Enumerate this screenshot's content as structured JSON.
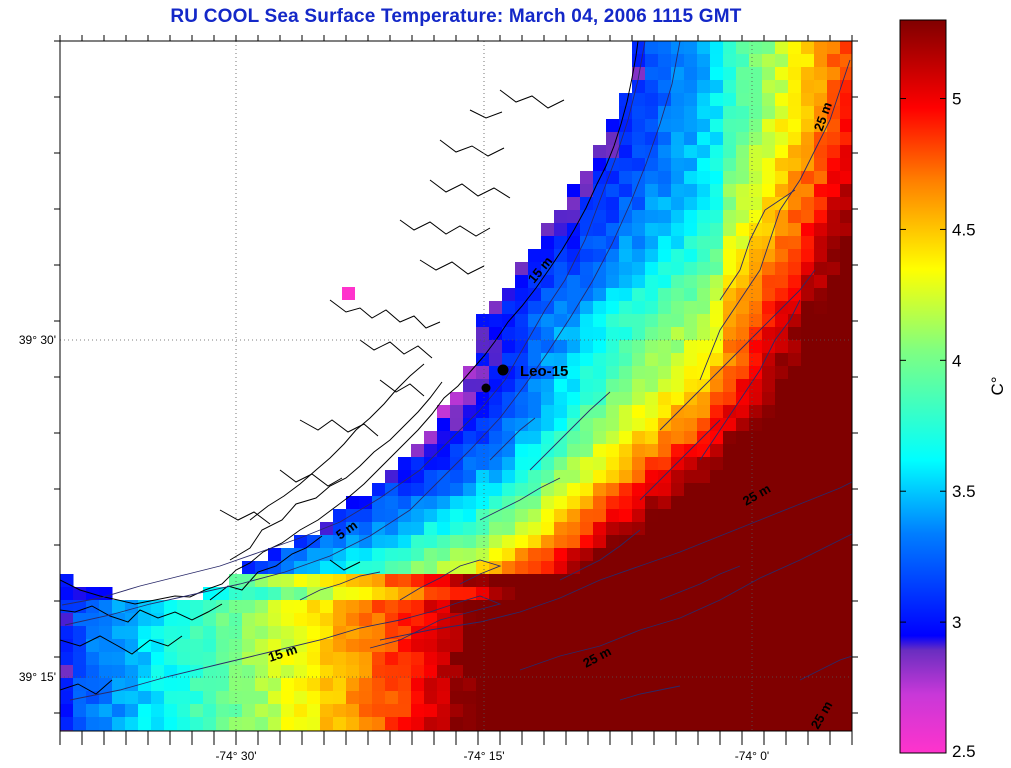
{
  "title": "RU COOL  Sea Surface Temperature:  March 04, 2006 1115 GMT",
  "axes": {
    "lat_ticks": [
      "39° 30'",
      "39° 15'"
    ],
    "lon_ticks": [
      "-74° 30'",
      "-74° 15'",
      "-74° 0'"
    ]
  },
  "station": {
    "name": "Leo-15"
  },
  "contours": {
    "labels": [
      "25 m",
      "15 m",
      "5 m",
      "15 m",
      "25 m",
      "25 m",
      "25 m"
    ]
  },
  "colorbar": {
    "unit": "C°",
    "tick_labels": [
      "5",
      "4.5",
      "4",
      "3.5",
      "3",
      "2.5"
    ],
    "range": [
      2.5,
      5.3
    ]
  },
  "colors": {
    "title": "#1428c8",
    "land": "#ffffff",
    "colormap": [
      "#ff33cc",
      "#7a32c8",
      "#0000ff",
      "#007fff",
      "#00ffff",
      "#7fff7f",
      "#ffff00",
      "#ff8000",
      "#ff0000",
      "#800000"
    ]
  }
}
